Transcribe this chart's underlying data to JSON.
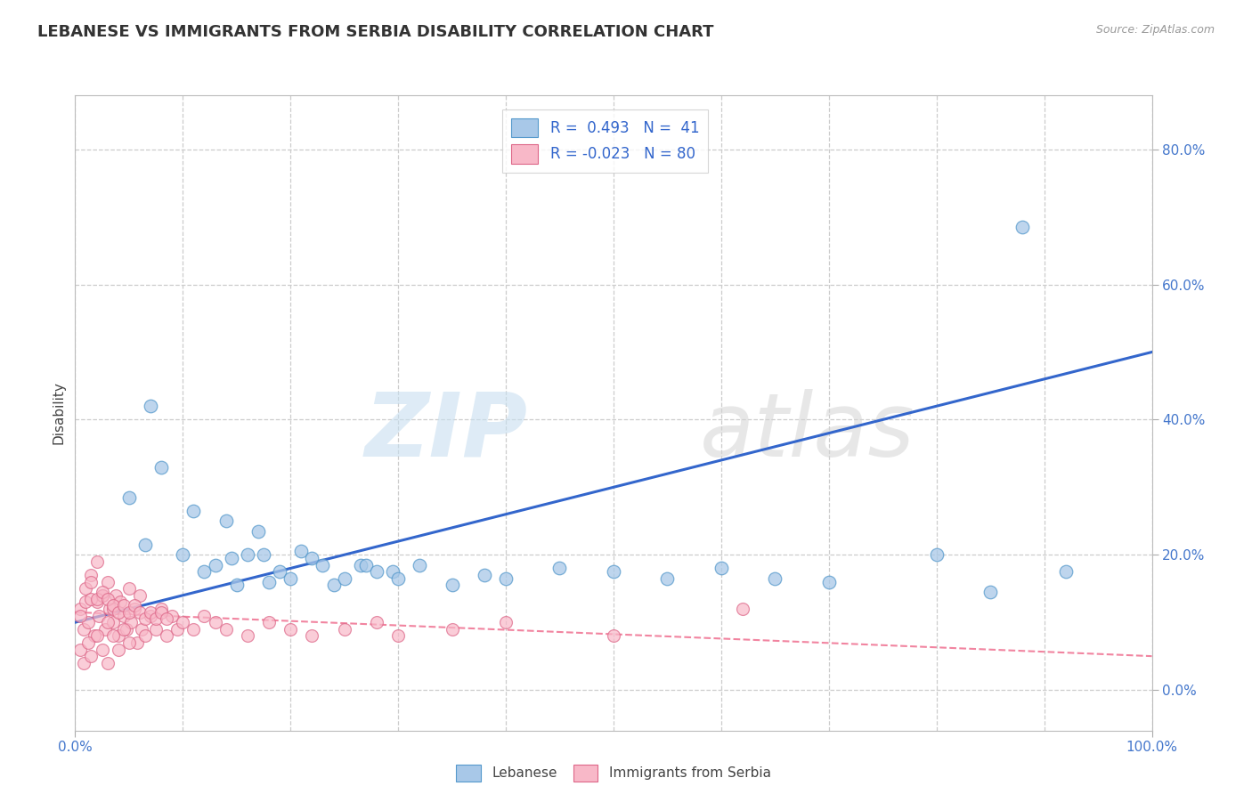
{
  "title": "LEBANESE VS IMMIGRANTS FROM SERBIA DISABILITY CORRELATION CHART",
  "source": "Source: ZipAtlas.com",
  "ylabel": "Disability",
  "blue_color": "#a8c8e8",
  "blue_edge": "#5599cc",
  "pink_color": "#f8b8c8",
  "pink_edge": "#dd6688",
  "line_blue": "#3366cc",
  "line_pink": "#ee6688",
  "xlim": [
    0.0,
    1.0
  ],
  "ylim": [
    -0.06,
    0.88
  ],
  "blue_trendline": [
    [
      0.0,
      0.1
    ],
    [
      1.0,
      0.5
    ]
  ],
  "pink_trendline": [
    [
      0.0,
      0.115
    ],
    [
      1.0,
      0.05
    ]
  ],
  "blue_x": [
    0.05,
    0.065,
    0.07,
    0.08,
    0.1,
    0.11,
    0.12,
    0.13,
    0.14,
    0.145,
    0.15,
    0.16,
    0.17,
    0.175,
    0.18,
    0.19,
    0.2,
    0.21,
    0.22,
    0.23,
    0.24,
    0.25,
    0.265,
    0.27,
    0.28,
    0.295,
    0.3,
    0.32,
    0.35,
    0.38,
    0.4,
    0.45,
    0.5,
    0.55,
    0.6,
    0.65,
    0.7,
    0.8,
    0.85,
    0.92,
    0.88
  ],
  "blue_y": [
    0.285,
    0.215,
    0.42,
    0.33,
    0.2,
    0.265,
    0.175,
    0.185,
    0.25,
    0.195,
    0.155,
    0.2,
    0.235,
    0.2,
    0.16,
    0.175,
    0.165,
    0.205,
    0.195,
    0.185,
    0.155,
    0.165,
    0.185,
    0.185,
    0.175,
    0.175,
    0.165,
    0.185,
    0.155,
    0.17,
    0.165,
    0.18,
    0.175,
    0.165,
    0.18,
    0.165,
    0.16,
    0.2,
    0.145,
    0.175,
    0.685
  ],
  "pink_x": [
    0.005,
    0.008,
    0.01,
    0.012,
    0.015,
    0.018,
    0.02,
    0.022,
    0.025,
    0.028,
    0.03,
    0.032,
    0.035,
    0.038,
    0.04,
    0.042,
    0.045,
    0.048,
    0.05,
    0.052,
    0.055,
    0.058,
    0.06,
    0.062,
    0.005,
    0.008,
    0.012,
    0.015,
    0.02,
    0.025,
    0.03,
    0.035,
    0.04,
    0.045,
    0.05,
    0.005,
    0.01,
    0.015,
    0.02,
    0.025,
    0.03,
    0.035,
    0.065,
    0.07,
    0.075,
    0.08,
    0.085,
    0.09,
    0.095,
    0.1,
    0.11,
    0.12,
    0.13,
    0.14,
    0.16,
    0.18,
    0.2,
    0.22,
    0.25,
    0.28,
    0.3,
    0.35,
    0.4,
    0.5,
    0.62,
    0.015,
    0.02,
    0.025,
    0.03,
    0.035,
    0.04,
    0.045,
    0.05,
    0.055,
    0.06,
    0.065,
    0.07,
    0.075,
    0.08,
    0.085
  ],
  "pink_y": [
    0.12,
    0.09,
    0.15,
    0.1,
    0.17,
    0.08,
    0.13,
    0.11,
    0.14,
    0.09,
    0.16,
    0.12,
    0.1,
    0.14,
    0.08,
    0.13,
    0.11,
    0.09,
    0.15,
    0.1,
    0.12,
    0.07,
    0.14,
    0.09,
    0.06,
    0.04,
    0.07,
    0.05,
    0.08,
    0.06,
    0.04,
    0.08,
    0.06,
    0.09,
    0.07,
    0.11,
    0.13,
    0.16,
    0.19,
    0.14,
    0.1,
    0.12,
    0.08,
    0.11,
    0.09,
    0.12,
    0.08,
    0.11,
    0.09,
    0.1,
    0.09,
    0.11,
    0.1,
    0.09,
    0.08,
    0.1,
    0.09,
    0.08,
    0.09,
    0.1,
    0.08,
    0.09,
    0.1,
    0.08,
    0.12,
    0.135,
    0.135,
    0.145,
    0.135,
    0.125,
    0.115,
    0.125,
    0.115,
    0.125,
    0.115,
    0.105,
    0.115,
    0.105,
    0.115,
    0.105
  ]
}
